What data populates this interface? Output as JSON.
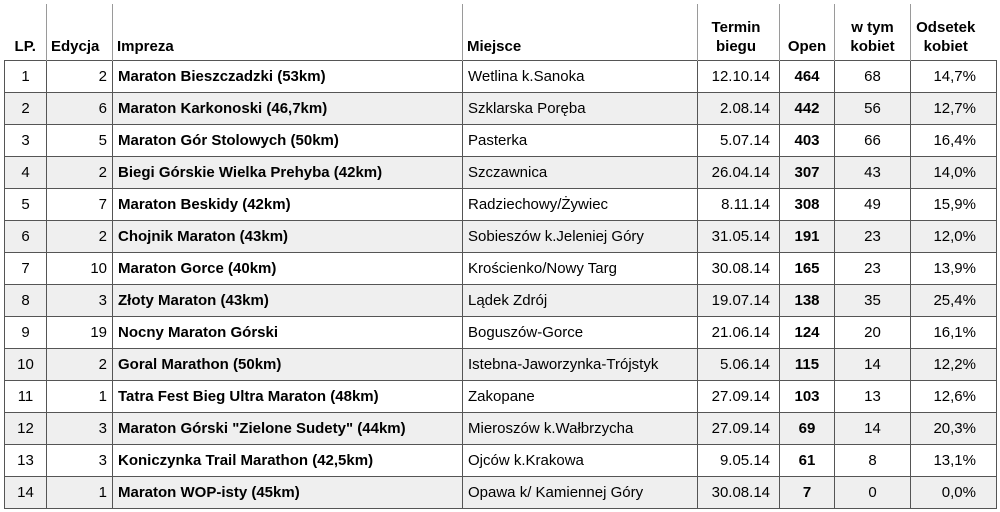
{
  "table": {
    "headers": [
      "LP.",
      "Edycja",
      "Impreza",
      "Miejsce",
      "Termin biegu",
      "Open",
      "w tym kobiet",
      "Odsetek kobiet"
    ],
    "rows": [
      [
        "1",
        "2",
        "Maraton Bieszczadzki (53km)",
        "Wetlina k.Sanoka",
        "12.10.14",
        "464",
        "68",
        "14,7%"
      ],
      [
        "2",
        "6",
        "Maraton Karkonoski (46,7km)",
        "Szklarska Poręba",
        "2.08.14",
        "442",
        "56",
        "12,7%"
      ],
      [
        "3",
        "5",
        "Maraton Gór Stolowych (50km)",
        "Pasterka",
        "5.07.14",
        "403",
        "66",
        "16,4%"
      ],
      [
        "4",
        "2",
        "Biegi Górskie Wielka Prehyba (42km)",
        "Szczawnica",
        "26.04.14",
        "307",
        "43",
        "14,0%"
      ],
      [
        "5",
        "7",
        "Maraton Beskidy (42km)",
        "Radziechowy/Żywiec",
        "8.11.14",
        "308",
        "49",
        "15,9%"
      ],
      [
        "6",
        "2",
        "Chojnik Maraton (43km)",
        "Sobieszów k.Jeleniej Góry",
        "31.05.14",
        "191",
        "23",
        "12,0%"
      ],
      [
        "7",
        "10",
        "Maraton Gorce (40km)",
        "Krościenko/Nowy Targ",
        "30.08.14",
        "165",
        "23",
        "13,9%"
      ],
      [
        "8",
        "3",
        "Złoty Maraton (43km)",
        "Lądek Zdrój",
        "19.07.14",
        "138",
        "35",
        "25,4%"
      ],
      [
        "9",
        "19",
        "Nocny Maraton Górski",
        "Boguszów-Gorce",
        "21.06.14",
        "124",
        "20",
        "16,1%"
      ],
      [
        "10",
        "2",
        "Goral Marathon (50km)",
        "Istebna-Jaworzynka-Trójstyk",
        "5.06.14",
        "115",
        "14",
        "12,2%"
      ],
      [
        "11",
        "1",
        "Tatra Fest Bieg Ultra Maraton (48km)",
        "Zakopane",
        "27.09.14",
        "103",
        "13",
        "12,6%"
      ],
      [
        "12",
        "3",
        "Maraton Górski \"Zielone Sudety\" (44km)",
        "Mieroszów k.Wałbrzycha",
        "27.09.14",
        "69",
        "14",
        "20,3%"
      ],
      [
        "13",
        "3",
        "Koniczynka Trail Marathon (42,5km)",
        "Ojców k.Krakowa",
        "9.05.14",
        "61",
        "8",
        "13,1%"
      ],
      [
        "14",
        "1",
        "Maraton WOP-isty (45km)",
        "Opawa k/ Kamiennej Góry",
        "30.08.14",
        "7",
        "0",
        "0,0%"
      ]
    ]
  }
}
